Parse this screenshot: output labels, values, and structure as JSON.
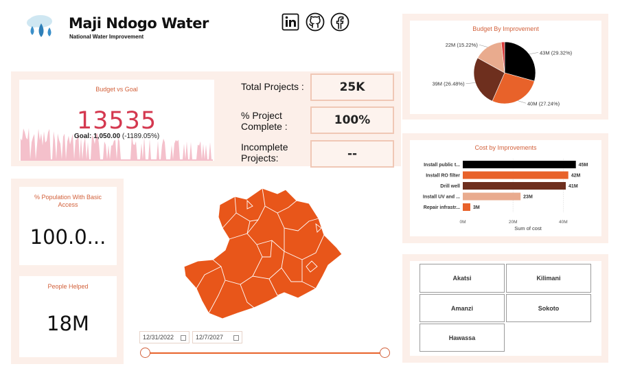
{
  "header": {
    "title": "Maji Ndogo Water",
    "subtitle": "National Water Improvement",
    "social_icons": [
      "linkedin-icon",
      "github-icon",
      "facebook-icon"
    ]
  },
  "budget_vs_goal": {
    "title": "Budget vs Goal",
    "value": "13535",
    "goal_label": "Goal:",
    "goal_value": "1,050.00",
    "goal_delta": "(-1189.05%)"
  },
  "kpis": {
    "total_projects_label": "Total Projects :",
    "total_projects_value": "25K",
    "pct_complete_label_1": "% Project",
    "pct_complete_label_2": "Complete :",
    "pct_complete_value": "100%",
    "incomplete_label_1": "Incomplete",
    "incomplete_label_2": "Projects:",
    "incomplete_value": "--"
  },
  "population_card": {
    "title_1": "% Population With Basic",
    "title_2": "Access",
    "value": "100.0..."
  },
  "people_helped_card": {
    "title": "People Helped",
    "value": "18M"
  },
  "date_range": {
    "start": "12/31/2022",
    "end": "12/7/2027"
  },
  "slicer": {
    "items": [
      "Akatsi",
      "Kilimani",
      "Amanzi",
      "Sokoto",
      "Hawassa"
    ]
  },
  "colors": {
    "accent": "#e8622a",
    "black": "#000000",
    "dark_brown": "#6e2f1e",
    "light_peach": "#e9ab8e",
    "red_slice": "#d93a3a",
    "kpi_red": "#d4384f",
    "sparkline_pink": "#f4b8c4",
    "panel_bg": "#fcefe9"
  },
  "chart_data": [
    {
      "type": "pie",
      "title": "Budget By Improvement",
      "slices": [
        {
          "label": "43M (29.32%)",
          "value": 29.32,
          "color": "#000000"
        },
        {
          "label": "40M (27.24%)",
          "value": 27.24,
          "color": "#e8622a"
        },
        {
          "label": "39M (26.48%)",
          "value": 26.48,
          "color": "#6e2f1e"
        },
        {
          "label": "22M (15.22%)",
          "value": 15.22,
          "color": "#e9ab8e"
        },
        {
          "label": "",
          "value": 1.74,
          "color": "#d93a3a"
        }
      ]
    },
    {
      "type": "bar",
      "title": "Cost by Improvements",
      "orientation": "horizontal",
      "categories": [
        "Install public t...",
        "Install RO filter",
        "Drill well",
        "Install UV and ...",
        "Repair infrastr..."
      ],
      "values": [
        45,
        42,
        41,
        23,
        3
      ],
      "value_labels": [
        "45M",
        "42M",
        "41M",
        "23M",
        "3M"
      ],
      "colors": [
        "#000000",
        "#e8622a",
        "#6e2f1e",
        "#e9ab8e",
        "#e8622a"
      ],
      "xlabel": "Sum of cost",
      "xticks": [
        "0M",
        "20M",
        "40M"
      ],
      "xlim": [
        0,
        47
      ]
    }
  ]
}
